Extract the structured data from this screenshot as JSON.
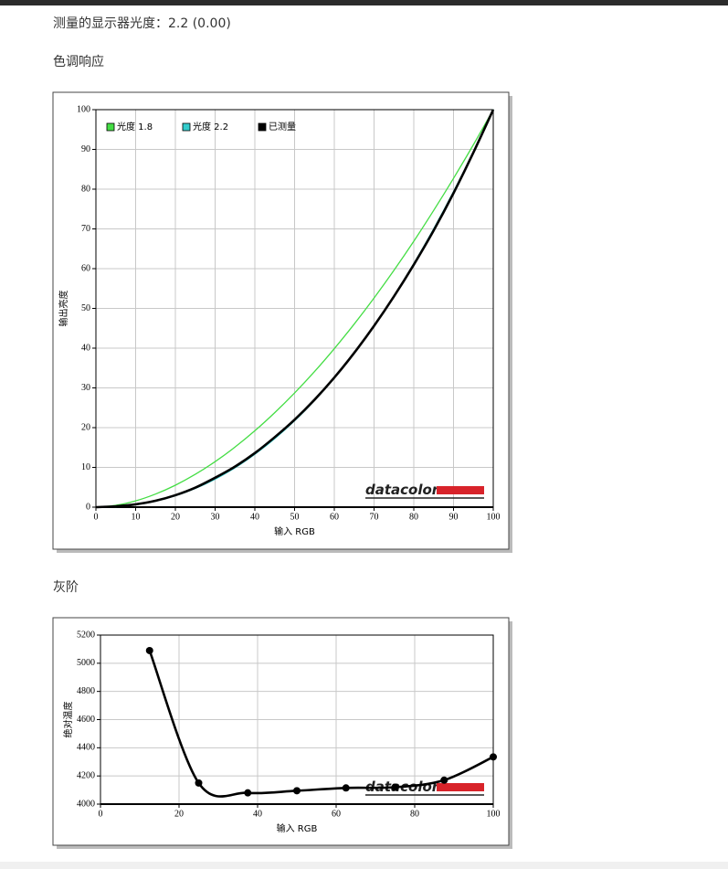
{
  "header": {
    "gamma_text": "测量的显示器光度：2.2 (0.00)"
  },
  "sections": [
    {
      "title": "色调响应"
    },
    {
      "title": "灰阶"
    }
  ],
  "chart_data": [
    {
      "type": "line",
      "xlabel": "输入 RGB",
      "ylabel": "输出亮度",
      "watermark": "datacolor",
      "x": [
        0,
        5,
        10,
        15,
        20,
        25,
        30,
        35,
        40,
        45,
        50,
        55,
        60,
        65,
        70,
        75,
        80,
        85,
        90,
        95,
        100
      ],
      "series": [
        {
          "name": "光度 1.8",
          "color": "#44dd44",
          "values": [
            0,
            0.46,
            1.58,
            3.29,
            5.52,
            8.25,
            11.45,
            15.11,
            19.22,
            23.77,
            28.72,
            34.09,
            39.88,
            46.05,
            52.62,
            59.57,
            66.9,
            74.64,
            82.72,
            91.18,
            100
          ]
        },
        {
          "name": "光度 2.2",
          "color": "#33cccc",
          "values": [
            0,
            0.14,
            0.63,
            1.54,
            2.9,
            4.74,
            7.07,
            9.93,
            13.33,
            17.26,
            21.76,
            26.85,
            32.5,
            38.76,
            45.62,
            53.1,
            61.21,
            69.94,
            79.31,
            89.32,
            100
          ]
        },
        {
          "name": "已测量",
          "color": "#000000",
          "values": [
            0,
            0.2,
            0.7,
            1.6,
            3.0,
            4.9,
            7.4,
            10.2,
            13.6,
            17.6,
            22.0,
            27.0,
            32.6,
            38.8,
            45.6,
            53.0,
            61.0,
            69.6,
            79.0,
            89.2,
            100
          ]
        }
      ],
      "xlim": [
        0,
        100
      ],
      "xticks": [
        0,
        10,
        20,
        30,
        40,
        50,
        60,
        70,
        80,
        90,
        100
      ],
      "ylim": [
        0,
        100
      ],
      "yticks": [
        0,
        10,
        20,
        30,
        40,
        50,
        60,
        70,
        80,
        90,
        100
      ],
      "grid": true,
      "legend": "top-left"
    },
    {
      "type": "line",
      "xlabel": "输入 RGB",
      "ylabel": "绝对温度",
      "watermark": "datacolor",
      "x": [
        12.5,
        25,
        37.5,
        50,
        62.5,
        75,
        87.5,
        100
      ],
      "series": [
        {
          "color": "#000000",
          "values": [
            5090,
            4150,
            4080,
            4095,
            4115,
            4120,
            4170,
            4335
          ],
          "markers": true
        }
      ],
      "xlim": [
        0,
        100
      ],
      "xticks": [
        0,
        20,
        40,
        60,
        80,
        100
      ],
      "ylim": [
        4000,
        5200
      ],
      "yticks": [
        4000,
        4200,
        4400,
        4600,
        4800,
        5000,
        5200
      ],
      "grid": true
    }
  ]
}
